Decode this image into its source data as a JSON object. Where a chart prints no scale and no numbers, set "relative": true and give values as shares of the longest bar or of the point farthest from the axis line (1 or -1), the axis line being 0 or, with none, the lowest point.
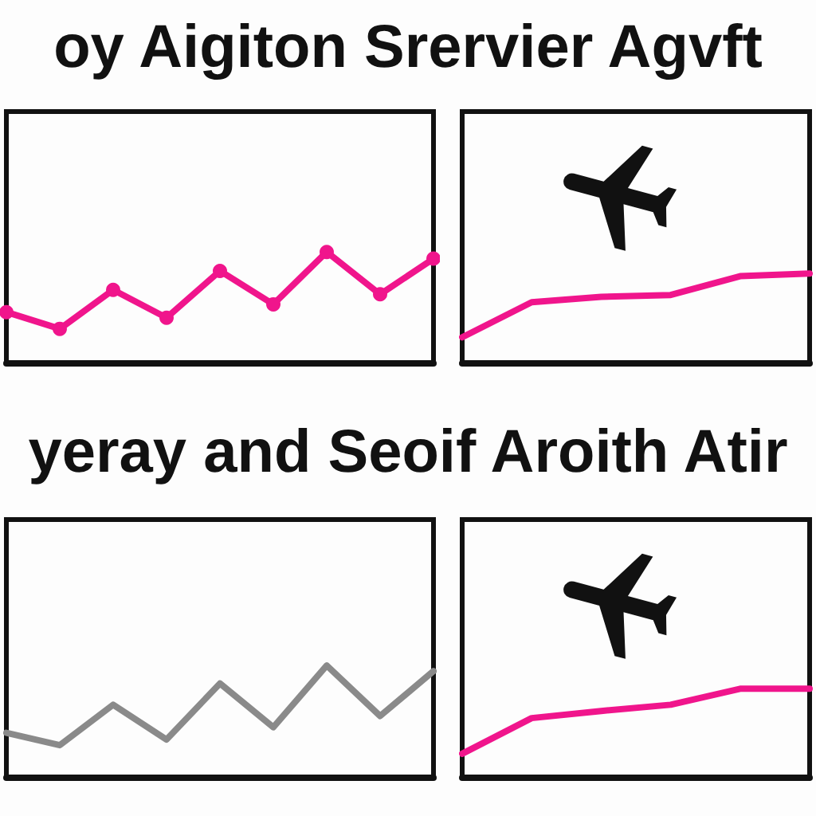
{
  "chart_data": [
    {
      "type": "line",
      "title": "oy Aigiton Srervier Agvft",
      "categories": [
        null,
        null,
        null,
        null,
        null,
        null,
        null,
        null,
        null
      ],
      "relative": true,
      "marker": "circle",
      "line_style": "solid",
      "tick_labels": false,
      "series": [
        {
          "color": "#f0158c",
          "values": [
            0.46,
            0.31,
            0.66,
            0.41,
            0.83,
            0.53,
            1,
            0.62,
            0.94
          ]
        }
      ]
    },
    {
      "type": "line",
      "categories": [
        null,
        null,
        null,
        null,
        null,
        null
      ],
      "relative": true,
      "line_style": "solid",
      "tick_labels": false,
      "series": [
        {
          "color": "#f0158c",
          "values": [
            0.29,
            0.68,
            0.74,
            0.76,
            0.97,
            1
          ]
        }
      ]
    },
    {
      "type": "line",
      "title": "yeray and Seoif Aroith Atir",
      "categories": [
        null,
        null,
        null,
        null,
        null,
        null,
        null,
        null,
        null
      ],
      "relative": true,
      "line_style": "solid",
      "tick_labels": false,
      "series": [
        {
          "color": "#8a8a8a",
          "values": [
            0.4,
            0.29,
            0.65,
            0.34,
            0.84,
            0.45,
            1,
            0.55,
            0.95
          ]
        }
      ]
    },
    {
      "type": "line",
      "categories": [
        null,
        null,
        null,
        null,
        null,
        null
      ],
      "relative": true,
      "line_style": "solid",
      "tick_labels": false,
      "series": [
        {
          "color": "#f0158c",
          "values": [
            0.27,
            0.67,
            0.75,
            0.82,
            1,
            1
          ]
        }
      ]
    }
  ]
}
